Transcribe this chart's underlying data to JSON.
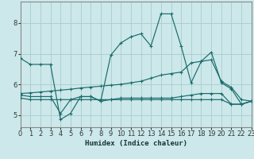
{
  "xlabel": "Humidex (Indice chaleur)",
  "background_color": "#cce8ea",
  "grid_color": "#aacccc",
  "line_color": "#1a6b6b",
  "xlim": [
    0,
    23
  ],
  "ylim": [
    4.6,
    8.7
  ],
  "yticks": [
    5,
    6,
    7,
    8
  ],
  "xtick_labels": [
    "0",
    "1",
    "2",
    "3",
    "4",
    "5",
    "6",
    "7",
    "8",
    "9",
    "10",
    "11",
    "12",
    "13",
    "14",
    "15",
    "16",
    "17",
    "18",
    "19",
    "20",
    "21",
    "22",
    "23"
  ],
  "line1_x": [
    0,
    1,
    2,
    3,
    4,
    5,
    6,
    7,
    8,
    9,
    10,
    11,
    12,
    13,
    14,
    15,
    16,
    17,
    18,
    19,
    20,
    21,
    22,
    23
  ],
  "line1_y": [
    6.85,
    6.65,
    6.65,
    6.65,
    4.85,
    5.05,
    5.6,
    5.6,
    5.45,
    6.95,
    7.35,
    7.55,
    7.65,
    7.25,
    8.3,
    8.3,
    7.25,
    6.05,
    6.75,
    7.05,
    6.05,
    5.85,
    5.35,
    5.45
  ],
  "line2_x": [
    0,
    1,
    2,
    3,
    4,
    5,
    6,
    7,
    8,
    9,
    10,
    11,
    12,
    13,
    14,
    15,
    16,
    17,
    18,
    19,
    20,
    21,
    22,
    23
  ],
  "line2_y": [
    5.7,
    5.72,
    5.75,
    5.78,
    5.81,
    5.84,
    5.88,
    5.91,
    5.94,
    5.97,
    6.0,
    6.05,
    6.1,
    6.2,
    6.3,
    6.35,
    6.4,
    6.7,
    6.75,
    6.8,
    6.1,
    5.9,
    5.5,
    5.45
  ],
  "line3_x": [
    0,
    1,
    2,
    3,
    4,
    5,
    6,
    7,
    8,
    9,
    10,
    11,
    12,
    13,
    14,
    15,
    16,
    17,
    18,
    19,
    20,
    21,
    22,
    23
  ],
  "line3_y": [
    5.65,
    5.6,
    5.6,
    5.6,
    5.05,
    5.5,
    5.6,
    5.6,
    5.45,
    5.5,
    5.55,
    5.55,
    5.55,
    5.55,
    5.55,
    5.55,
    5.6,
    5.65,
    5.7,
    5.7,
    5.7,
    5.35,
    5.35,
    5.45
  ],
  "line4_x": [
    0,
    1,
    2,
    3,
    4,
    5,
    6,
    7,
    8,
    9,
    10,
    11,
    12,
    13,
    14,
    15,
    16,
    17,
    18,
    19,
    20,
    21,
    22,
    23
  ],
  "line4_y": [
    5.55,
    5.5,
    5.5,
    5.5,
    5.5,
    5.5,
    5.5,
    5.5,
    5.5,
    5.5,
    5.5,
    5.5,
    5.5,
    5.5,
    5.5,
    5.5,
    5.5,
    5.5,
    5.5,
    5.5,
    5.5,
    5.35,
    5.35,
    5.45
  ]
}
